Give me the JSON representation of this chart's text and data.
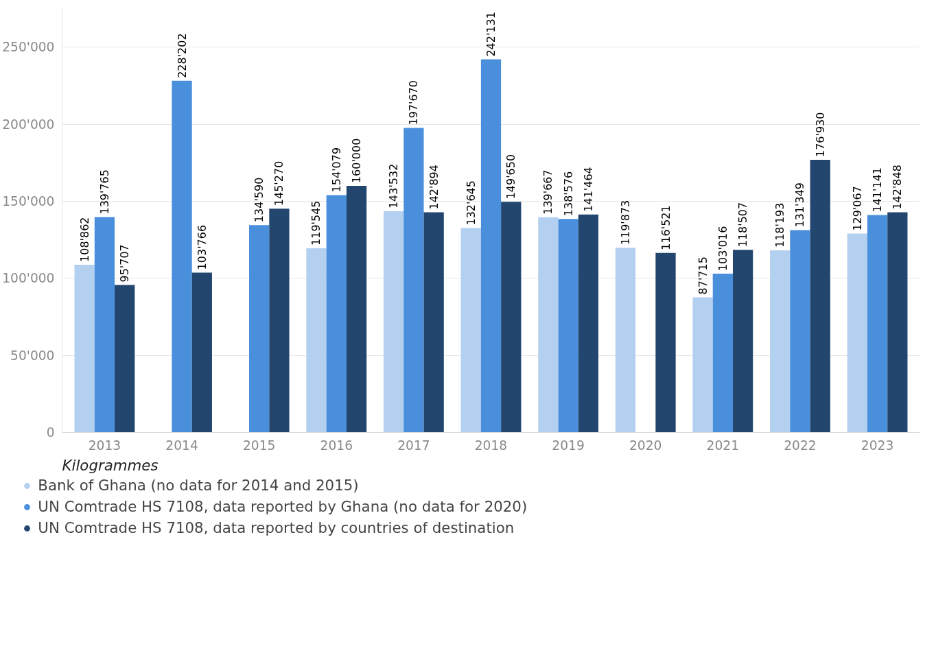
{
  "chart_data": {
    "type": "bar",
    "categories": [
      "2013",
      "2014",
      "2015",
      "2016",
      "2017",
      "2018",
      "2019",
      "2020",
      "2021",
      "2022",
      "2023"
    ],
    "series": [
      {
        "name": "Bank of Ghana (no data for 2014 and 2015)",
        "color": "#b4d0f0",
        "values": [
          108862,
          null,
          null,
          119545,
          143532,
          132645,
          139667,
          119873,
          87715,
          118193,
          129067
        ],
        "value_labels": [
          "108'862",
          null,
          null,
          "119'545",
          "143'532",
          "132'645",
          "139'667",
          "119'873",
          "87'715",
          "118'193",
          "129'067"
        ]
      },
      {
        "name": "UN Comtrade HS 7108, data reported by Ghana (no data for 2020)",
        "color": "#4a8fdc",
        "values": [
          139765,
          228202,
          134590,
          154079,
          197670,
          242131,
          138576,
          null,
          103016,
          131349,
          141141
        ],
        "value_labels": [
          "139'765",
          "228'202",
          "134'590",
          "154'079",
          "197'670",
          "242'131",
          "138'576",
          null,
          "103'016",
          "131'349",
          "141'141"
        ]
      },
      {
        "name": "UN Comtrade HS 7108, data reported by countries of destination",
        "color": "#23466e",
        "values": [
          95707,
          103766,
          145270,
          160000,
          142894,
          149650,
          141464,
          116521,
          118507,
          176930,
          142848
        ],
        "value_labels": [
          "95'707",
          "103'766",
          "145'270",
          "160'000",
          "142'894",
          "149'650",
          "141'464",
          "116'521",
          "118'507",
          "176'930",
          "142'848"
        ]
      }
    ],
    "ylim": [
      0,
      276000
    ],
    "yticks": [
      {
        "value": 0,
        "label": "0"
      },
      {
        "value": 50000,
        "label": "50'000"
      },
      {
        "value": 100000,
        "label": "100'000"
      },
      {
        "value": 150000,
        "label": "150'000"
      },
      {
        "value": 200000,
        "label": "200'000"
      },
      {
        "value": 250000,
        "label": "250'000"
      }
    ],
    "grid": "y",
    "legend": "bottom",
    "annotations": [
      "Kilogrammes"
    ]
  }
}
